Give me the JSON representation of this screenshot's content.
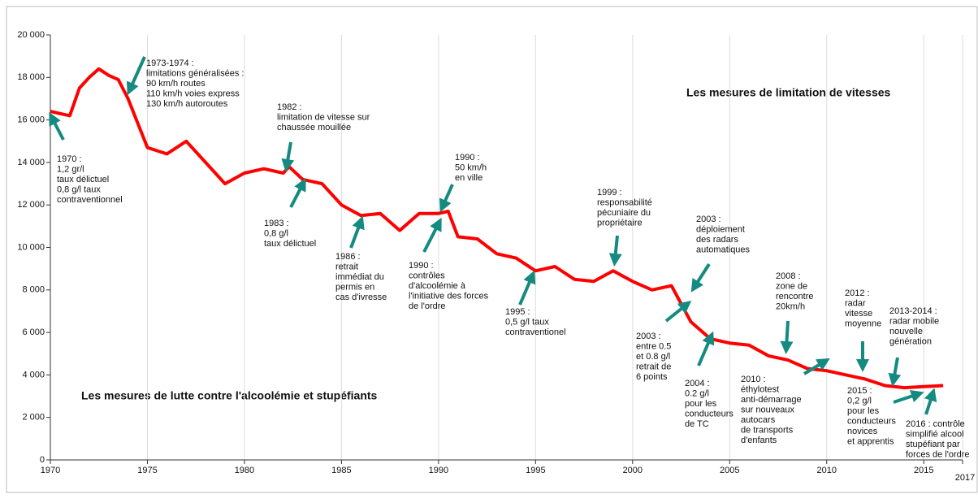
{
  "chart_data": {
    "type": "line",
    "headings": [
      "Les mesures de limitation de vitesses",
      "Les mesures de lutte contre l'alcoolémie et stupéfiants"
    ],
    "x": [
      1970,
      1971,
      1971.5,
      1972,
      1972.5,
      1973,
      1973.5,
      1974,
      1975,
      1976,
      1977,
      1978,
      1979,
      1980,
      1981,
      1982,
      1982.3,
      1983,
      1984,
      1985,
      1986,
      1987,
      1988,
      1989,
      1990,
      1990.5,
      1991,
      1992,
      1993,
      1994,
      1995,
      1996,
      1997,
      1998,
      1999,
      2000,
      2001,
      2002,
      2003,
      2004,
      2005,
      2006,
      2007,
      2008,
      2009,
      2010,
      2011,
      2012,
      2013,
      2014,
      2015,
      2016
    ],
    "values": [
      16400,
      16200,
      17500,
      18000,
      18400,
      18100,
      17900,
      17000,
      14700,
      14400,
      15000,
      14000,
      13000,
      13500,
      13700,
      13500,
      13800,
      13200,
      13000,
      12000,
      11500,
      11600,
      10800,
      11600,
      11600,
      11700,
      10500,
      10400,
      9700,
      9500,
      8900,
      9100,
      8500,
      8400,
      8900,
      8400,
      8000,
      8200,
      6500,
      5700,
      5500,
      5400,
      4900,
      4700,
      4300,
      4200,
      4000,
      3800,
      3500,
      3400,
      3450,
      3500
    ],
    "color": "#ff0000",
    "xlim": [
      1970,
      2017
    ],
    "ylim": [
      0,
      20000
    ],
    "xticks": [
      1970,
      1975,
      1980,
      1985,
      1990,
      1995,
      2000,
      2005,
      2010,
      2015,
      2017
    ],
    "yticks": [
      0,
      {
        "value": 2000,
        "label": "2 000"
      },
      {
        "value": 4000,
        "label": "4 000"
      },
      {
        "value": 6000,
        "label": "6 000"
      },
      {
        "value": 8000,
        "label": "8 000"
      },
      {
        "value": 10000,
        "label": "10 000"
      },
      {
        "value": 12000,
        "label": "12 000"
      },
      {
        "value": 14000,
        "label": "14 000"
      },
      {
        "value": 16000,
        "label": "16 000"
      },
      {
        "value": 18000,
        "label": "18 000"
      },
      {
        "value": 20000,
        "label": "20 000"
      }
    ],
    "grid": true,
    "annotations": [
      [
        "1970 :",
        "1,2 gr/l",
        "taux délictuel",
        "0,8 g/l  taux",
        "contraventionnel"
      ],
      [
        "1973-1974 :",
        "limitations  généralisées  :",
        "90 km/h routes",
        "110 km/h  voies express",
        "130 km/h  autoroutes"
      ],
      [
        "1982 :",
        "limitation  de vitesse sur",
        "chaussée mouillée"
      ],
      [
        "1983 :",
        "0,8 g/l",
        "taux délictuel"
      ],
      [
        "1986 :",
        "retrait",
        "immédiat  du",
        "permis en",
        "cas d'ivresse"
      ],
      [
        "1990 :",
        "contrôles",
        "d'alcoolémie  à",
        "l'initiative des forces",
        "de l'ordre"
      ],
      [
        "1990 :",
        "50 km/h",
        "en ville"
      ],
      [
        "1995 :",
        "0,5 g/l  taux",
        "contraventionel"
      ],
      [
        "1999 :",
        "responsabilité",
        "pécuniaire du",
        "propriétaire"
      ],
      [
        "2003 :",
        "déploiement",
        "des  radars",
        "automatiques"
      ],
      [
        "2003 :",
        "entre 0.5",
        "et 0.8 g/l",
        "retrait de",
        "6 points"
      ],
      [
        "2004 :",
        "0.2 g/l",
        "pour les",
        "conducteurs",
        "de TC"
      ],
      [
        "2008 :",
        "zone de",
        "rencontre",
        "20km/h"
      ],
      [
        "2010 :",
        "éthylotest",
        "anti-démarrage",
        "sur nouveaux",
        "autocars",
        "de transports",
        "d'enfants"
      ],
      [
        "2012 :",
        "radar",
        "vitesse",
        "moyenne"
      ],
      [
        "2013-2014 :",
        "radar mobile",
        "nouvelle",
        "génération"
      ],
      [
        "2015 :",
        "0,2 g/l",
        "pour les",
        "conducteurs",
        "novices",
        "et apprentis"
      ],
      [
        "2016 : contrôle",
        "simplifié alcool",
        "stupéfiant par",
        "forces de l'ordre"
      ]
    ]
  }
}
